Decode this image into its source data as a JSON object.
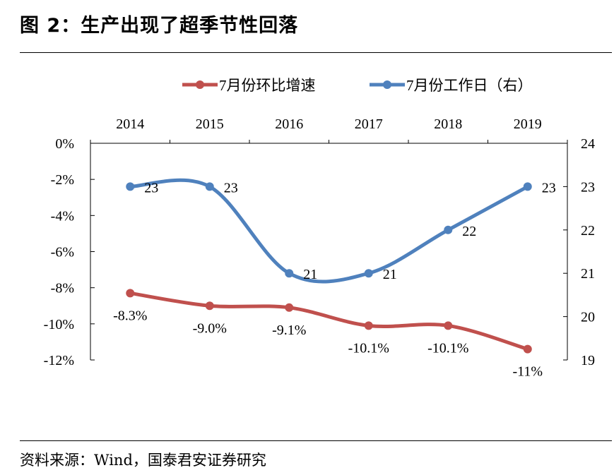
{
  "header": {
    "title": "图 2：生产出现了超季节性回落"
  },
  "footer": {
    "source": "资料来源：Wind，国泰君安证券研究"
  },
  "chart_data": {
    "type": "line",
    "categories": [
      "2014",
      "2015",
      "2016",
      "2017",
      "2018",
      "2019"
    ],
    "y_left": {
      "ticks": [
        "0%",
        "-2%",
        "-4%",
        "-6%",
        "-8%",
        "-10%",
        "-12%"
      ],
      "range": [
        -12,
        0
      ]
    },
    "y_right": {
      "ticks": [
        "24",
        "23",
        "22",
        "21",
        "20",
        "19"
      ],
      "range": [
        19,
        24
      ]
    },
    "legend_position": "top",
    "series": [
      {
        "name": "7月份环比增速",
        "axis": "left",
        "color": "#c0504d",
        "values": [
          -8.3,
          -9.0,
          -9.1,
          -10.1,
          -10.1,
          -11.4
        ],
        "labels": [
          "-8.3%",
          "-9.0%",
          "-9.1%",
          "-10.1%",
          "-10.1%",
          "-11%"
        ]
      },
      {
        "name": "7月份工作日（右）",
        "axis": "right",
        "color": "#4f81bd",
        "values": [
          23,
          23,
          21,
          21,
          22,
          23
        ],
        "labels": [
          "23",
          "23",
          "21",
          "21",
          "22",
          "23"
        ]
      }
    ]
  }
}
